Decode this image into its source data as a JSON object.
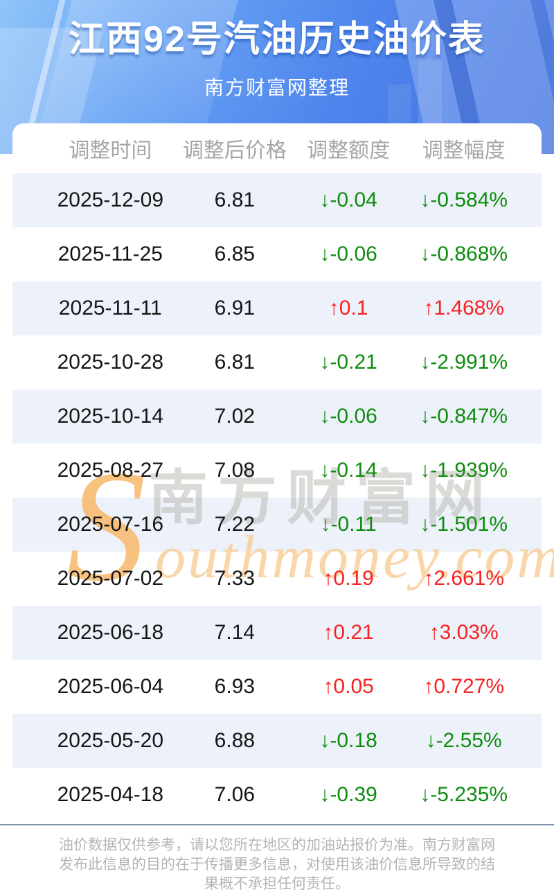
{
  "header": {
    "title": "江西92号汽油历史油价表",
    "subtitle": "南方财富网整理"
  },
  "table": {
    "columns": [
      "调整时间",
      "调整后价格",
      "调整额度",
      "调整幅度"
    ],
    "rows": [
      {
        "date": "2025-12-09",
        "price": "6.81",
        "change": "↓-0.04",
        "change_pct": "↓-0.584%",
        "direction": "down"
      },
      {
        "date": "2025-11-25",
        "price": "6.85",
        "change": "↓-0.06",
        "change_pct": "↓-0.868%",
        "direction": "down"
      },
      {
        "date": "2025-11-11",
        "price": "6.91",
        "change": "↑0.1",
        "change_pct": "↑1.468%",
        "direction": "up"
      },
      {
        "date": "2025-10-28",
        "price": "6.81",
        "change": "↓-0.21",
        "change_pct": "↓-2.991%",
        "direction": "down"
      },
      {
        "date": "2025-10-14",
        "price": "7.02",
        "change": "↓-0.06",
        "change_pct": "↓-0.847%",
        "direction": "down"
      },
      {
        "date": "2025-08-27",
        "price": "7.08",
        "change": "↓-0.14",
        "change_pct": "↓-1.939%",
        "direction": "down"
      },
      {
        "date": "2025-07-16",
        "price": "7.22",
        "change": "↓-0.11",
        "change_pct": "↓-1.501%",
        "direction": "down"
      },
      {
        "date": "2025-07-02",
        "price": "7.33",
        "change": "↑0.19",
        "change_pct": "↑2.661%",
        "direction": "up"
      },
      {
        "date": "2025-06-18",
        "price": "7.14",
        "change": "↑0.21",
        "change_pct": "↑3.03%",
        "direction": "up"
      },
      {
        "date": "2025-06-04",
        "price": "6.93",
        "change": "↑0.05",
        "change_pct": "↑0.727%",
        "direction": "up"
      },
      {
        "date": "2025-05-20",
        "price": "6.88",
        "change": "↓-0.18",
        "change_pct": "↓-2.55%",
        "direction": "down"
      },
      {
        "date": "2025-04-18",
        "price": "7.06",
        "change": "↓-0.39",
        "change_pct": "↓-5.235%",
        "direction": "down"
      }
    ]
  },
  "watermark": {
    "initial": "S",
    "cn": "南方财富网",
    "en": "outhmoney.com"
  },
  "footer": {
    "disclaimer_lines": [
      "油价数据仅供参考，请以您所在地区的加油站报价为准。南方财富网",
      "发布此信息的目的在于传播更多信息，对使用该油价信息所导致的结",
      "果概不承担任何责任。"
    ]
  },
  "colors": {
    "up_red": "#f62222",
    "down_green": "#0e8c0e",
    "row_alt_bg": "#edf2fa",
    "hero_blue": "#4e84ec",
    "divider": "#7e93ac"
  }
}
